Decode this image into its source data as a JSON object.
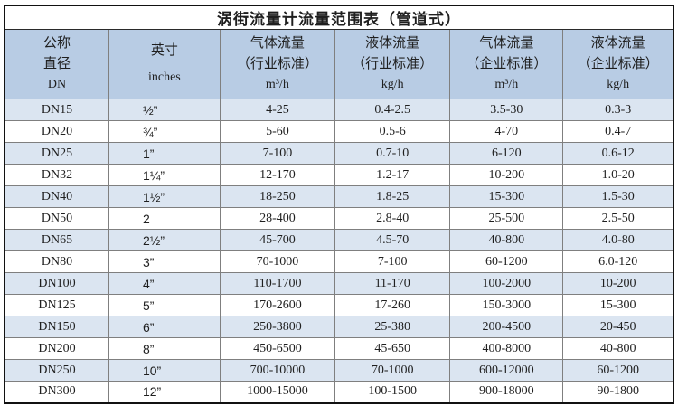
{
  "chart_data": {
    "type": "table",
    "title": "涡街流量计流量范围表（管道式）",
    "columns": [
      {
        "id": "dn",
        "lines": [
          "公称",
          "直径",
          "DN"
        ]
      },
      {
        "id": "inches",
        "lines": [
          "英寸",
          "inches"
        ]
      },
      {
        "id": "gas_industry",
        "lines": [
          "气体流量",
          "（行业标准）",
          "m³/h"
        ]
      },
      {
        "id": "liquid_industry",
        "lines": [
          "液体流量",
          "（行业标准）",
          "kg/h"
        ]
      },
      {
        "id": "gas_enterprise",
        "lines": [
          "气体流量",
          "（企业标准）",
          "m³/h"
        ]
      },
      {
        "id": "liquid_enterprise",
        "lines": [
          "液体流量",
          "（企业标准）",
          "kg/h"
        ]
      }
    ],
    "rows": [
      [
        "DN15",
        "½”",
        "4-25",
        "0.4-2.5",
        "3.5-30",
        "0.3-3"
      ],
      [
        "DN20",
        "¾”",
        "5-60",
        "0.5-6",
        "4-70",
        "0.4-7"
      ],
      [
        "DN25",
        "1”",
        "7-100",
        "0.7-10",
        "6-120",
        "0.6-12"
      ],
      [
        "DN32",
        "1¼”",
        "12-170",
        "1.2-17",
        "10-200",
        "1.0-20"
      ],
      [
        "DN40",
        "1½”",
        "18-250",
        "1.8-25",
        "15-300",
        "1.5-30"
      ],
      [
        "DN50",
        "2",
        "28-400",
        "2.8-40",
        "25-500",
        "2.5-50"
      ],
      [
        "DN65",
        "2½”",
        "45-700",
        "4.5-70",
        "40-800",
        "4.0-80"
      ],
      [
        "DN80",
        "3”",
        "70-1000",
        "7-100",
        "60-1200",
        "6.0-120"
      ],
      [
        "DN100",
        "4”",
        "110-1700",
        "11-170",
        "100-2000",
        "10-200"
      ],
      [
        "DN125",
        "5”",
        "170-2600",
        "17-260",
        "150-3000",
        "15-300"
      ],
      [
        "DN150",
        "6”",
        "250-3800",
        "25-380",
        "200-4500",
        "20-450"
      ],
      [
        "DN200",
        "8”",
        "450-6500",
        "45-650",
        "400-8000",
        "40-800"
      ],
      [
        "DN250",
        "10”",
        "700-10000",
        "70-1000",
        "600-12000",
        "60-1200"
      ],
      [
        "DN300",
        "12”",
        "1000-15000",
        "100-1500",
        "900-18000",
        "90-1800"
      ]
    ]
  },
  "colors": {
    "header_bg": "#b8cce4",
    "alt_row_bg": "#dbe5f1",
    "row_bg": "#ffffff",
    "grid_line": "#7f7f7f",
    "outer_border": "#111111",
    "text": "#1f1f1f"
  }
}
